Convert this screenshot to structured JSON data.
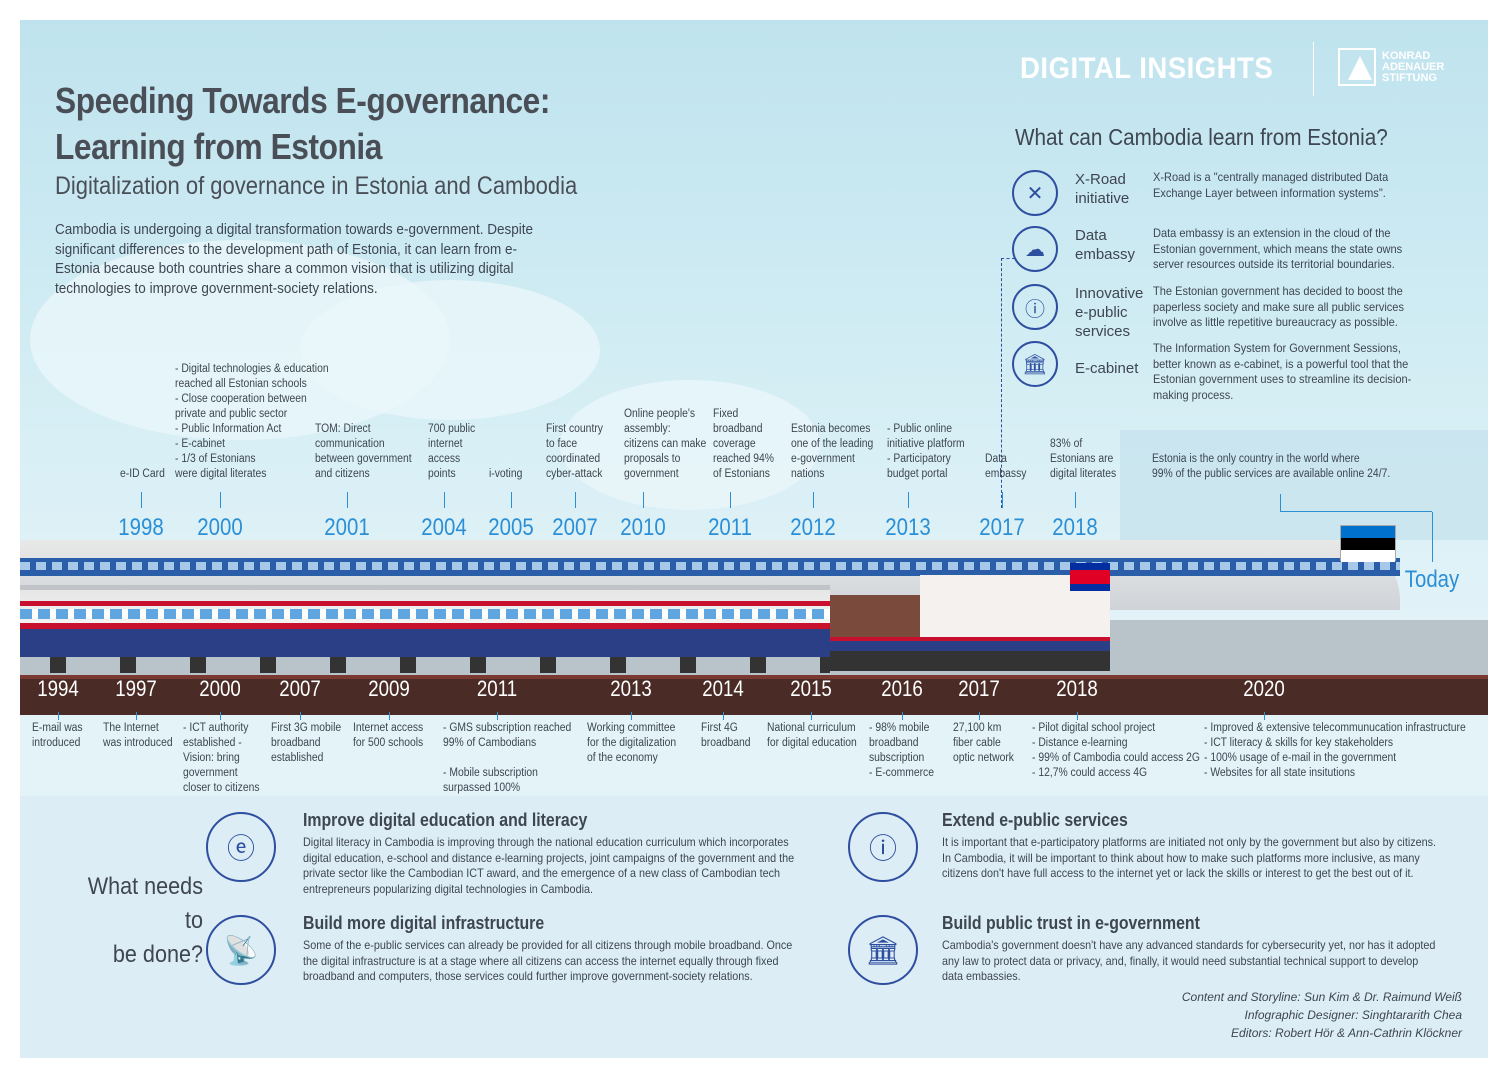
{
  "brand": {
    "name": "DIGITAL INSIGHTS",
    "partner": "KONRAD\nADENAUER\nSTIFTUNG"
  },
  "header": {
    "title_line1": "Speeding Towards E-governance:",
    "title_line2": "Learning from Estonia",
    "subtitle": "Digitalization of governance in Estonia and Cambodia",
    "intro": "Cambodia is undergoing a digital transformation towards e-government. Despite significant differences to the development path of Estonia, it can learn from e-Estonia because both countries share a common vision that is utilizing digital technologies to improve government-society relations."
  },
  "learn": {
    "heading": "What can Cambodia learn from Estonia?",
    "items": [
      {
        "name": "X-Road\ninitiative",
        "icon": "x-road-icon",
        "desc": "X-Road is a \"centrally managed distributed Data Exchange Layer between information systems\"."
      },
      {
        "name": "Data\nembassy",
        "icon": "cloud-network-icon",
        "desc": "Data embassy is an extension in the cloud of the Estonian government, which means the state owns server resources outside its territorial boundaries."
      },
      {
        "name": "Innovative\ne-public\nservices",
        "icon": "e-services-icon",
        "desc": "The Estonian government has decided to boost the paperless society and make sure all public services involve as little repetitive bureaucracy as possible."
      },
      {
        "name": "E-cabinet",
        "icon": "government-building-icon",
        "desc": "The Information System for Government Sessions, better known as e-cabinet, is a powerful tool that the Estonian government uses to streamline its decision-making process."
      }
    ]
  },
  "estonia": [
    {
      "year": "1998",
      "text": "e-ID Card"
    },
    {
      "year": "2000",
      "text": "- Digital technologies & education\n  reached all Estonian schools\n- Close cooperation between\n  private and public sector\n- Public Information Act\n- E-cabinet\n- 1/3 of Estonians\n  were digital literates"
    },
    {
      "year": "2001",
      "text": "TOM: Direct\ncommunication\nbetween government\nand citizens"
    },
    {
      "year": "2004",
      "text": "700 public\ninternet\naccess\npoints"
    },
    {
      "year": "2005",
      "text": "i-voting"
    },
    {
      "year": "2007",
      "text": "First country\nto face\ncoordinated\ncyber-attack"
    },
    {
      "year": "2010",
      "text": "Online people's\nassembly:\ncitizens can make\nproposals to\ngovernment"
    },
    {
      "year": "2011",
      "text": "Fixed\nbroadband\ncoverage\nreached 94%\nof Estonians"
    },
    {
      "year": "2012",
      "text": "Estonia becomes\none of the leading\ne-government\nnations"
    },
    {
      "year": "2013",
      "text": "- Public online\n  initiative platform\n- Participatory\n  budget portal"
    },
    {
      "year": "2017",
      "text": "Data\nembassy"
    },
    {
      "year": "2018",
      "text": "83% of\nEstonians are\ndigital literates"
    },
    {
      "year": "Today",
      "text": "Estonia is the only country in the world where\n99% of the public services are available online 24/7."
    }
  ],
  "cambodia": [
    {
      "year": "1994",
      "text": "E-mail was\nintroduced"
    },
    {
      "year": "1997",
      "text": "The Internet\nwas introduced"
    },
    {
      "year": "2000",
      "text": "- ICT authority\n  established -\n  Vision: bring\n  government\n  closer to citizens"
    },
    {
      "year": "2007",
      "text": "First 3G mobile\nbroadband\nestablished"
    },
    {
      "year": "2009",
      "text": "Internet access\nfor 500 schools"
    },
    {
      "year": "2011",
      "text": "- GMS subscription reached\n  99% of Cambodians\n\n- Mobile subscription\n  surpassed 100%"
    },
    {
      "year": "2013",
      "text": "Working committee\nfor the digitalization\nof the economy"
    },
    {
      "year": "2014",
      "text": "First 4G\nbroadband"
    },
    {
      "year": "2015",
      "text": "National curriculum\nfor digital education"
    },
    {
      "year": "2016",
      "text": "- 98% mobile\n  broadband\n  subscription\n- E-commerce"
    },
    {
      "year": "2017",
      "text": "27,100 km\nfiber cable\noptic network"
    },
    {
      "year": "2018",
      "text": "- Pilot digital school project\n- Distance e-learning\n- 99% of Cambodia could access 2G\n- 12,7% could access 4G"
    },
    {
      "year": "2020",
      "text": "- Improved & extensive telecommunucation infrastructure\n- ICT literacy & skills for key stakeholders\n- 100% usage of e-mail in the government\n- Websites for all state insitutions"
    }
  ],
  "todo": {
    "heading": "What needs to\nbe done?",
    "items": [
      {
        "title": "Improve digital education and literacy",
        "icon": "e-book-icon",
        "text": "Digital literacy in Cambodia is improving through the national education curriculum which incorporates digital education, e-school and distance e-learning projects, joint campaigns of the government and the private sector like the Cambodian ICT award, and the emergence of a new class of Cambodian tech entrepreneurs popularizing digital technologies in Cambodia."
      },
      {
        "title": "Build more digital infrastructure",
        "icon": "antenna-tower-icon",
        "text": "Some of the e-public services can already be provided for all citizens through mobile broadband. Once the digital infrastructure is at a stage where all citizens can access the internet equally through fixed broadband and computers, those services could further improve government-society relations."
      },
      {
        "title": "Extend e-public services",
        "icon": "e-services-icon",
        "text": "It is important that e-participatory platforms are initiated not only by the government but also by citizens. In Cambodia, it will be important to think about how to make such platforms more inclusive, as many citizens don't have full access to the internet yet or lack the skills or interest to get the best out of it."
      },
      {
        "title": "Build public trust in e-government",
        "icon": "government-shield-icon",
        "text": "Cambodia's government doesn't have any advanced standards for cybersecurity yet, nor has it adopted any law to protect data or privacy, and, finally, it would need substantial technical support to develop data embassies."
      }
    ]
  },
  "credits": [
    "Content and Storyline: Sun Kim & Dr. Raimund Weiß",
    "Infographic Designer: Singhtararith Chea",
    "Editors: Robert Hör & Ann-Cathrin Klöckner"
  ],
  "colors": {
    "accent": "#2b8fd6",
    "icon": "#2e4ea0",
    "track": "#4a2b26",
    "panel": "#d7eff5"
  }
}
